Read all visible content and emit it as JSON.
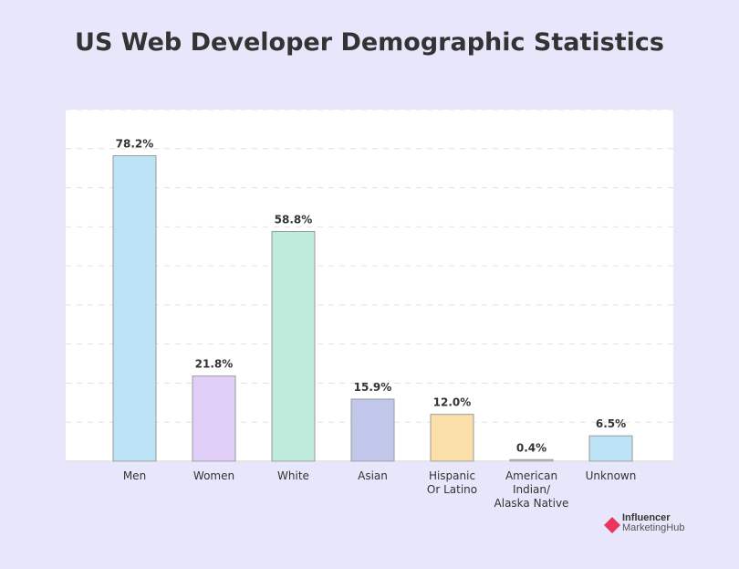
{
  "chart_data": {
    "type": "bar",
    "title": "US Web Developer Demographic Statistics",
    "categories": [
      "Men",
      "Women",
      "White",
      "Asian",
      "Hispanic Or Latino",
      "American Indian/ Alaska Native",
      "Unknown"
    ],
    "category_lines": [
      [
        "Men"
      ],
      [
        "Women"
      ],
      [
        "White"
      ],
      [
        "Asian"
      ],
      [
        "Hispanic",
        "Or Latino"
      ],
      [
        "American",
        "Indian/",
        "Alaska Native"
      ],
      [
        "Unknown"
      ]
    ],
    "values": [
      78.2,
      21.8,
      58.8,
      15.9,
      12.0,
      0.4,
      6.5
    ],
    "labels": [
      "78.2%",
      "21.8%",
      "58.8%",
      "15.9%",
      "12.0%",
      "0.4%",
      "6.5%"
    ],
    "colors": [
      "#bde4f6",
      "#e0cff8",
      "#bfebdd",
      "#c0c7eb",
      "#fae0a8",
      "#cfd4dc",
      "#bde4f6"
    ],
    "xlabel": "",
    "ylabel": "",
    "ylim": [
      0,
      90
    ],
    "grid": true
  },
  "logo": {
    "line1": "Influencer",
    "line2": "MarketingHub",
    "color": "#e8365d"
  }
}
